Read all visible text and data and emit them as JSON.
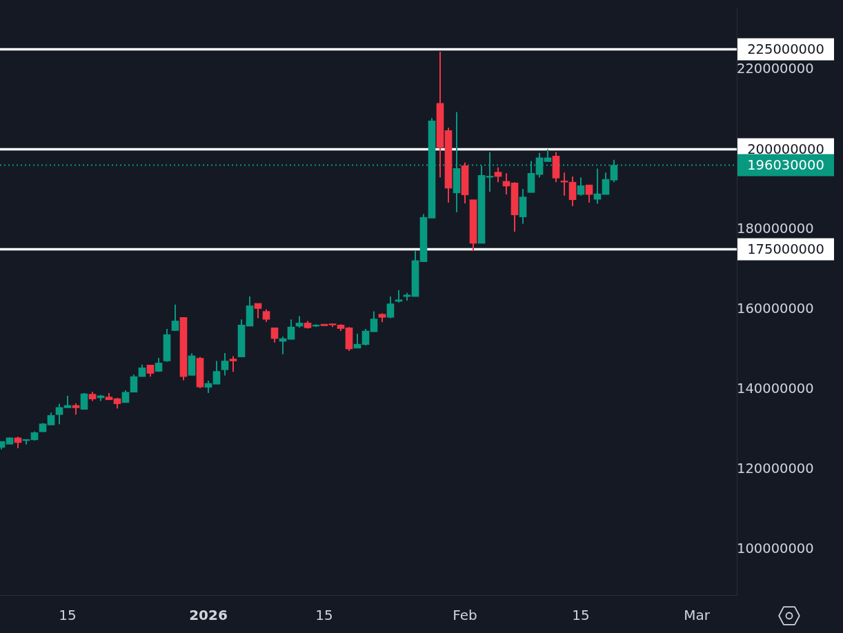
{
  "chart_data": {
    "type": "candlestick",
    "x": [
      "2025-12-07",
      "2025-12-08",
      "2025-12-09",
      "2025-12-10",
      "2025-12-11",
      "2025-12-12",
      "2025-12-13",
      "2025-12-14",
      "2025-12-15",
      "2025-12-16",
      "2025-12-17",
      "2025-12-18",
      "2025-12-19",
      "2025-12-20",
      "2025-12-21",
      "2025-12-22",
      "2025-12-23",
      "2025-12-24",
      "2025-12-25",
      "2025-12-26",
      "2025-12-27",
      "2025-12-28",
      "2025-12-29",
      "2025-12-30",
      "2025-12-31",
      "2026-01-01",
      "2026-01-02",
      "2026-01-03",
      "2026-01-04",
      "2026-01-05",
      "2026-01-06",
      "2026-01-07",
      "2026-01-08",
      "2026-01-09",
      "2026-01-10",
      "2026-01-11",
      "2026-01-12",
      "2026-01-13",
      "2026-01-14",
      "2026-01-15",
      "2026-01-16",
      "2026-01-17",
      "2026-01-18",
      "2026-01-19",
      "2026-01-20",
      "2026-01-21",
      "2026-01-22",
      "2026-01-23",
      "2026-01-24",
      "2026-01-25",
      "2026-01-26",
      "2026-01-27",
      "2026-01-28",
      "2026-01-29",
      "2026-01-30",
      "2026-01-31",
      "2026-02-01",
      "2026-02-02",
      "2026-02-03",
      "2026-02-04",
      "2026-02-05",
      "2026-02-06",
      "2026-02-07",
      "2026-02-08",
      "2026-02-09",
      "2026-02-10",
      "2026-02-11",
      "2026-02-12",
      "2026-02-13",
      "2026-02-14",
      "2026-02-15",
      "2026-02-16",
      "2026-02-17",
      "2026-02-18",
      "2026-02-19"
    ],
    "ohlc": [
      [
        125500000,
        127000000,
        125000000,
        127000000
      ],
      [
        126300000,
        128000000,
        126300000,
        127900000
      ],
      [
        127900000,
        128200000,
        125300000,
        126700000
      ],
      [
        127200000,
        127500000,
        126200000,
        127500000
      ],
      [
        127400000,
        129500000,
        127200000,
        129200000
      ],
      [
        129400000,
        131600000,
        129400000,
        131400000
      ],
      [
        131100000,
        134200000,
        131100000,
        133500000
      ],
      [
        133700000,
        136400000,
        131300000,
        135500000
      ],
      [
        135400000,
        138400000,
        135400000,
        136000000
      ],
      [
        136000000,
        136500000,
        133700000,
        135400000
      ],
      [
        135000000,
        139100000,
        135000000,
        138900000
      ],
      [
        138800000,
        139400000,
        137100000,
        137600000
      ],
      [
        137900000,
        138600000,
        137100000,
        138400000
      ],
      [
        138100000,
        139100000,
        137400000,
        137400000
      ],
      [
        137700000,
        137900000,
        135200000,
        136400000
      ],
      [
        136700000,
        139800000,
        136700000,
        139300000
      ],
      [
        139300000,
        143700000,
        139300000,
        143200000
      ],
      [
        143200000,
        146200000,
        143200000,
        145400000
      ],
      [
        146100000,
        146100000,
        143200000,
        144000000
      ],
      [
        144500000,
        147900000,
        144400000,
        146600000
      ],
      [
        147100000,
        155100000,
        146900000,
        153700000
      ],
      [
        154700000,
        161200000,
        154600000,
        157100000
      ],
      [
        158000000,
        158000000,
        142300000,
        143200000
      ],
      [
        143500000,
        149000000,
        143500000,
        148400000
      ],
      [
        147800000,
        148100000,
        140300000,
        140600000
      ],
      [
        140500000,
        142200000,
        139100000,
        141500000
      ],
      [
        141300000,
        147100000,
        141300000,
        144500000
      ],
      [
        144900000,
        149100000,
        143500000,
        147100000
      ],
      [
        147600000,
        148300000,
        144400000,
        147100000
      ],
      [
        148100000,
        157500000,
        148100000,
        156100000
      ],
      [
        155800000,
        163200000,
        155800000,
        160900000
      ],
      [
        161500000,
        161500000,
        157800000,
        160200000
      ],
      [
        159500000,
        160000000,
        156900000,
        157500000
      ],
      [
        155400000,
        155400000,
        151700000,
        152700000
      ],
      [
        152000000,
        153200000,
        148800000,
        152700000
      ],
      [
        152500000,
        157500000,
        152500000,
        155600000
      ],
      [
        155800000,
        158300000,
        155400000,
        156600000
      ],
      [
        156600000,
        157100000,
        155200000,
        155400000
      ],
      [
        155800000,
        156300000,
        155600000,
        156100000
      ],
      [
        156300000,
        156300000,
        155900000,
        155900000
      ],
      [
        156400000,
        156400000,
        155600000,
        156100000
      ],
      [
        156100000,
        156300000,
        154600000,
        155200000
      ],
      [
        155400000,
        155600000,
        149600000,
        150100000
      ],
      [
        150300000,
        153900000,
        150300000,
        151300000
      ],
      [
        151200000,
        155100000,
        151000000,
        154600000
      ],
      [
        154400000,
        159500000,
        154400000,
        157600000
      ],
      [
        158800000,
        159000000,
        156800000,
        158000000
      ],
      [
        158000000,
        163200000,
        157800000,
        161400000
      ],
      [
        162000000,
        164800000,
        161700000,
        162400000
      ],
      [
        163200000,
        164100000,
        162200000,
        163600000
      ],
      [
        163200000,
        174600000,
        163200000,
        172200000
      ],
      [
        171900000,
        183800000,
        171900000,
        183000000
      ],
      [
        182800000,
        207800000,
        182800000,
        207100000
      ],
      [
        211500000,
        224400000,
        193000000,
        200500000
      ],
      [
        204700000,
        205400000,
        186700000,
        190300000
      ],
      [
        189100000,
        209300000,
        184300000,
        195200000
      ],
      [
        195900000,
        196700000,
        186500000,
        188600000
      ],
      [
        187400000,
        187400000,
        174600000,
        176500000
      ],
      [
        176500000,
        195900000,
        176500000,
        193500000
      ],
      [
        193000000,
        199300000,
        189400000,
        193300000
      ],
      [
        194300000,
        195500000,
        191800000,
        193200000
      ],
      [
        192000000,
        194000000,
        188700000,
        190800000
      ],
      [
        191600000,
        191800000,
        179400000,
        183600000
      ],
      [
        183100000,
        190100000,
        181400000,
        188100000
      ],
      [
        189200000,
        197100000,
        189200000,
        194000000
      ],
      [
        193700000,
        199100000,
        193000000,
        197900000
      ],
      [
        196900000,
        200000000,
        196900000,
        197900000
      ],
      [
        198300000,
        199300000,
        191800000,
        192800000
      ],
      [
        192100000,
        194200000,
        188400000,
        191800000
      ],
      [
        191800000,
        193200000,
        185800000,
        187400000
      ],
      [
        188700000,
        193000000,
        188400000,
        190900000
      ],
      [
        191100000,
        191100000,
        186700000,
        188700000
      ],
      [
        187500000,
        195200000,
        186400000,
        188900000
      ],
      [
        188700000,
        194200000,
        188700000,
        192500000
      ],
      [
        192300000,
        197400000,
        191800000,
        196030000
      ]
    ],
    "colors": [
      "#089981",
      "#089981",
      "#f23645",
      "#089981",
      "#089981",
      "#089981",
      "#089981",
      "#089981",
      "#089981",
      "#f23645",
      "#089981",
      "#f23645",
      "#089981",
      "#f23645",
      "#f23645",
      "#089981",
      "#089981",
      "#089981",
      "#f23645",
      "#089981",
      "#089981",
      "#089981",
      "#f23645",
      "#089981",
      "#f23645",
      "#089981",
      "#089981",
      "#089981",
      "#f23645",
      "#089981",
      "#089981",
      "#f23645",
      "#f23645",
      "#f23645",
      "#089981",
      "#089981",
      "#089981",
      "#f23645",
      "#089981",
      "#f23645",
      "#f23645",
      "#f23645",
      "#f23645",
      "#089981",
      "#089981",
      "#089981",
      "#f23645",
      "#089981",
      "#089981",
      "#089981",
      "#089981",
      "#089981",
      "#089981",
      "#f23645",
      "#f23645",
      "#089981",
      "#f23645",
      "#f23645",
      "#089981",
      "#089981",
      "#f23645",
      "#f23645",
      "#f23645",
      "#089981",
      "#089981",
      "#089981",
      "#089981",
      "#f23645",
      "#f23645",
      "#f23645",
      "#089981",
      "#f23645",
      "#089981",
      "#089981",
      "#089981"
    ],
    "xlim": [
      "2025-12-06T20:00",
      "2026-03-05T20:00"
    ],
    "xticks": [
      {
        "value": "2025-12-15",
        "label": "15"
      },
      {
        "value": "2026-01-01",
        "label": "2026"
      },
      {
        "value": "2026-01-15",
        "label": "15"
      },
      {
        "value": "2026-02-01",
        "label": "Feb"
      },
      {
        "value": "2026-02-15",
        "label": "15"
      },
      {
        "value": "2026-03-01",
        "label": "Mar"
      }
    ],
    "ylim": [
      88600000,
      235300000
    ],
    "yticks": [
      100000000,
      120000000,
      140000000,
      160000000,
      180000000,
      220000000
    ],
    "ref_lines": [
      {
        "axis": "y",
        "value": 225000000,
        "label": "225000000",
        "color": "#ffffff"
      },
      {
        "axis": "y",
        "value": 200000000,
        "label": "200000000",
        "color": "#ffffff"
      },
      {
        "axis": "y",
        "value": 175000000,
        "label": "175000000",
        "color": "#ffffff"
      },
      {
        "axis": "y",
        "value": 196030000,
        "label": "196030000",
        "color": "#089981",
        "line_style": "dotted"
      }
    ]
  }
}
